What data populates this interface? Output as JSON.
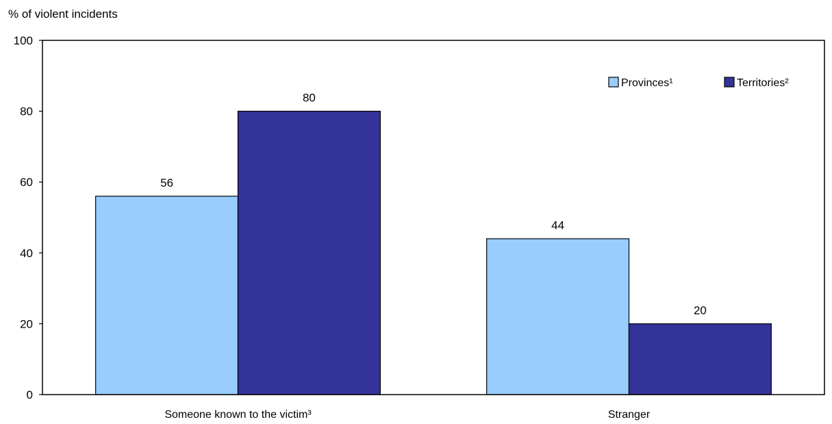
{
  "chart_data": {
    "type": "bar",
    "ylabel": "% of violent incidents",
    "xlabel": "",
    "ylim": [
      0,
      100
    ],
    "yticks": [
      0,
      20,
      40,
      60,
      80,
      100
    ],
    "categories": [
      "Someone known to the victim³",
      "Stranger"
    ],
    "series": [
      {
        "name": "Provinces¹",
        "color": "#99ccff",
        "values": [
          56,
          44
        ]
      },
      {
        "name": "Territories²",
        "color": "#333399",
        "values": [
          80,
          20
        ]
      }
    ],
    "data_labels": true,
    "legend_position": "top-right",
    "grid": false
  }
}
